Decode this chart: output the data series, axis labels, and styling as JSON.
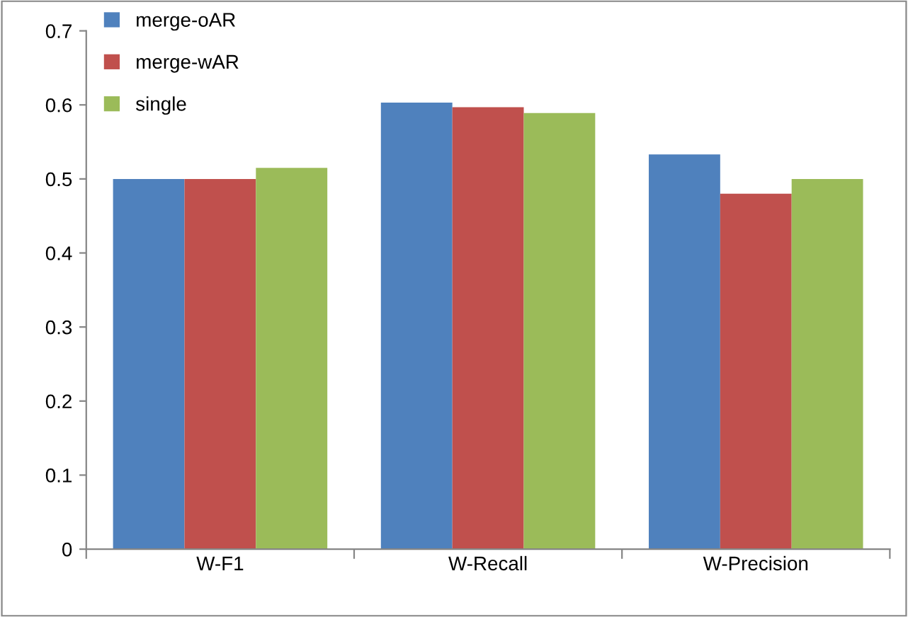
{
  "chart_data": {
    "type": "bar",
    "categories": [
      "W-F1",
      "W-Recall",
      "W-Precision"
    ],
    "series": [
      {
        "name": "merge-oAR",
        "color": "#4f81bd",
        "values": [
          0.5,
          0.603,
          0.533
        ]
      },
      {
        "name": "merge-wAR",
        "color": "#c0504d",
        "values": [
          0.5,
          0.597,
          0.48
        ]
      },
      {
        "name": "single",
        "color": "#9bbb59",
        "values": [
          0.515,
          0.589,
          0.5
        ]
      }
    ],
    "ylim": [
      0,
      0.7
    ],
    "yticks": [
      {
        "value": 0,
        "label": "0"
      },
      0.1,
      0.2,
      0.3,
      0.4,
      0.5,
      0.6,
      0.7
    ],
    "grid": false,
    "legend": "top left"
  }
}
